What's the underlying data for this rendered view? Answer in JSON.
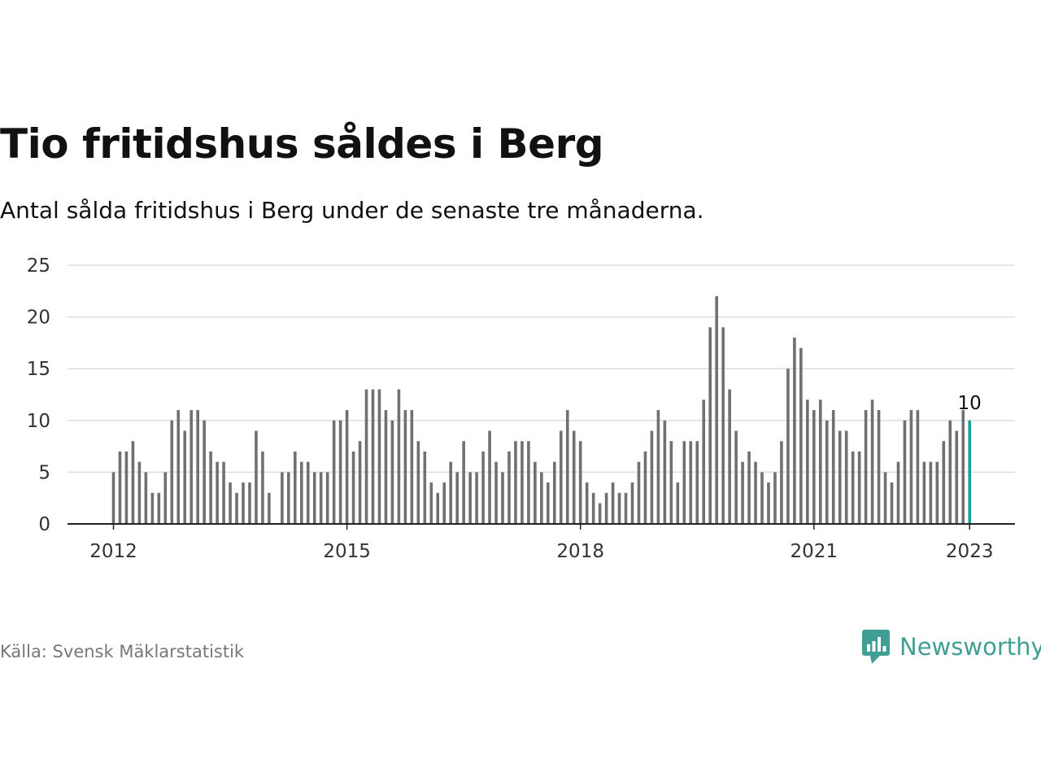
{
  "title": "Tio fritidshus såldes i Berg",
  "subtitle": "Antal sålda fritidshus i Berg under de senaste tre månaderna.",
  "source": "Källa: Svensk Mäklarstatistik",
  "brand": {
    "name": "Newsworthy",
    "icon": "newsworthy-logo-icon",
    "color": "#3f9f94"
  },
  "colors": {
    "bar": "#707070",
    "highlight": "#1a9e96",
    "grid": "#dddddd",
    "axis": "#222222"
  },
  "chart_data": {
    "type": "bar",
    "title": "Tio fritidshus såldes i Berg",
    "subtitle": "Antal sålda fritidshus i Berg under de senaste tre månaderna.",
    "xlabel": "",
    "ylabel": "",
    "x_start": "2012-01",
    "x_end": "2023-01",
    "ylim": [
      0,
      25
    ],
    "y_ticks": [
      0,
      5,
      10,
      15,
      20,
      25
    ],
    "x_ticks": [
      "2012",
      "2015",
      "2018",
      "2021",
      "2023"
    ],
    "grid": true,
    "highlight_last": true,
    "last_label": "10",
    "values": [
      5,
      7,
      7,
      8,
      6,
      5,
      3,
      3,
      5,
      10,
      11,
      9,
      11,
      11,
      10,
      7,
      6,
      6,
      4,
      3,
      4,
      4,
      9,
      7,
      3,
      null,
      5,
      5,
      7,
      6,
      6,
      5,
      5,
      5,
      10,
      10,
      11,
      7,
      8,
      13,
      13,
      13,
      11,
      10,
      13,
      11,
      11,
      8,
      7,
      4,
      3,
      4,
      6,
      5,
      8,
      5,
      5,
      7,
      9,
      6,
      5,
      7,
      8,
      8,
      8,
      6,
      5,
      4,
      6,
      9,
      11,
      9,
      8,
      4,
      3,
      2,
      3,
      4,
      3,
      3,
      4,
      6,
      7,
      9,
      11,
      10,
      8,
      4,
      8,
      8,
      8,
      12,
      19,
      22,
      19,
      13,
      9,
      6,
      7,
      6,
      5,
      4,
      5,
      8,
      15,
      18,
      17,
      12,
      11,
      12,
      10,
      11,
      9,
      9,
      7,
      7,
      11,
      12,
      11,
      5,
      4,
      6,
      10,
      11,
      11,
      6,
      6,
      6,
      8,
      10,
      9,
      11,
      10
    ]
  }
}
